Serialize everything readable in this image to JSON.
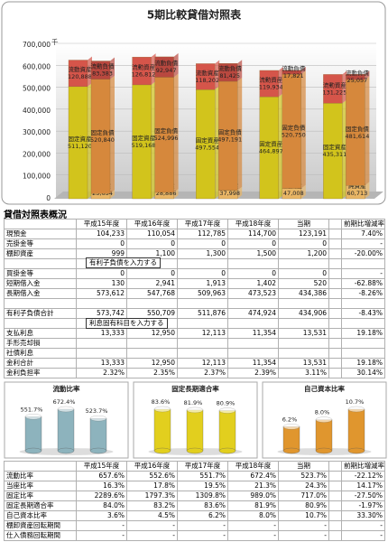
{
  "chart_data": [
    {
      "type": "stacked_pair",
      "title": "5期比較貸借対照表",
      "unit": "千",
      "ylim": [
        0,
        700000
      ],
      "yticks": [
        0,
        {
          "value": 100000,
          "label": "100,000"
        },
        {
          "value": 200000,
          "label": "200,000"
        },
        {
          "value": 300000,
          "label": "300,000"
        },
        {
          "value": 400000,
          "label": "400,000"
        },
        {
          "value": 500000,
          "label": "500,000"
        },
        {
          "value": 600000,
          "label": "600,000"
        },
        {
          "value": 700000,
          "label": "700,000"
        }
      ],
      "grid": true,
      "stacks": [
        [
          {
            "name": "固定資産",
            "color": "#d2c41c",
            "values": [
              511120,
              519168,
              497554,
              464897,
              435311
            ],
            "value_labels": [
              "511,120",
              "519,168",
              "497,554",
              "464,897",
              "435,311"
            ]
          },
          {
            "name": "流動資産",
            "color": "#d5554a",
            "values": [
              120888,
              126812,
              118202,
              119934,
              131225
            ],
            "value_labels": [
              "120,888",
              "126,812",
              "118,202",
              "119,934",
              "131,225"
            ]
          }
        ],
        [
          {
            "name": "純資産",
            "color": "#e8b565",
            "values": [
              23634,
              28886,
              37998,
              47008,
              60713
            ],
            "value_labels": [
              "23,634",
              "28,886",
              "37,998",
              "47,008",
              "60,713"
            ]
          },
          {
            "name": "固定負債",
            "color": "#d6883c",
            "values": [
              520840,
              524996,
              497191,
              520750,
              481614
            ],
            "value_labels": [
              "520,840",
              "524,996",
              "497,191",
              "520,750",
              "481,614"
            ]
          },
          {
            "name": "流動負債",
            "color": "#b9483f",
            "values": [
              83383,
              92947,
              81425,
              17821,
              25057
            ],
            "value_labels": [
              "83,383",
              "92,947",
              "81,425",
              "17,821",
              "25,057"
            ]
          }
        ]
      ]
    },
    {
      "type": "cylinder",
      "title": "流動比率",
      "color": "#8db3bd",
      "values": [
        551.7,
        672.4,
        523.7
      ],
      "value_labels": [
        "551.7%",
        "672.4%",
        "523.7%"
      ]
    },
    {
      "type": "cylinder",
      "title": "固定長期適合率",
      "color": "#e2cf1e",
      "values": [
        83.6,
        81.9,
        80.9
      ],
      "value_labels": [
        "83.6%",
        "81.9%",
        "80.9%"
      ]
    },
    {
      "type": "cylinder",
      "title": "自己資本比率",
      "color": "#e0962e",
      "values": [
        6.2,
        8.0,
        10.7
      ],
      "value_labels": [
        "6.2%",
        "8.0%",
        "10.7%"
      ]
    }
  ],
  "table1": {
    "title": "貸借対照表概況",
    "columns": [
      "平成15年度",
      "平成16年度",
      "平成17年度",
      "平成18年度",
      "当期",
      "前期比増減率"
    ],
    "rows": [
      [
        "現預金",
        "104,233",
        "110,054",
        "112,785",
        "114,700",
        "123,191",
        "7.40%"
      ],
      [
        "売掛金等",
        "0",
        "0",
        "0",
        "0",
        "0",
        "-"
      ],
      [
        "棚卸資産",
        "999",
        "1,100",
        "1,300",
        "1,500",
        "1,200",
        "-20.00%"
      ],
      [
        null,
        null,
        null,
        null,
        null,
        null,
        null
      ],
      [
        "買掛金等",
        "0",
        "0",
        "0",
        "0",
        "0",
        "-"
      ],
      [
        "短期借入金",
        "130",
        "2,941",
        "1,913",
        "1,402",
        "520",
        "-62.88%"
      ],
      [
        "長期借入金",
        "573,612",
        "547,768",
        "509,963",
        "473,523",
        "434,386",
        "-8.26%"
      ],
      [
        null,
        null,
        null,
        null,
        null,
        null,
        null
      ],
      [
        "有利子負債合計",
        "573,742",
        "550,709",
        "511,876",
        "474,924",
        "434,906",
        "-8.43%"
      ],
      [
        null,
        null,
        null,
        null,
        null,
        null,
        null
      ],
      [
        "支払利息",
        "13,333",
        "12,950",
        "12,113",
        "11,354",
        "13,531",
        "19.18%"
      ],
      [
        "手形売却損",
        null,
        null,
        null,
        null,
        null,
        null
      ],
      [
        "社債利息",
        null,
        null,
        null,
        null,
        null,
        null
      ],
      [
        "金利合計",
        "13,333",
        "12,950",
        "12,113",
        "11,354",
        "13,531",
        "19.18%"
      ],
      [
        "金利負担率",
        "2.32%",
        "2.35%",
        "2.37%",
        "2.39%",
        "3.11%",
        "30.14%"
      ]
    ]
  },
  "callouts": [
    "有利子負債を入力する",
    "利息固有科目を入力する"
  ],
  "table2": {
    "columns": [
      "平成15年度",
      "平成16年度",
      "平成17年度",
      "平成18年度",
      "当期",
      "前期比増減率"
    ],
    "rows": [
      [
        "流動比率",
        "657.6%",
        "552.6%",
        "551.7%",
        "672.4%",
        "523.7%",
        "-22.12%"
      ],
      [
        "当座比率",
        "16.3%",
        "17.8%",
        "19.5%",
        "21.3%",
        "24.3%",
        "14.17%"
      ],
      [
        "固定比率",
        "2289.6%",
        "1797.3%",
        "1309.8%",
        "989.0%",
        "717.0%",
        "-27.50%"
      ],
      [
        "固定長期適合率",
        "84.0%",
        "83.2%",
        "83.6%",
        "81.9%",
        "80.9%",
        "-1.97%"
      ],
      [
        "自己資本比率",
        "3.6%",
        "4.5%",
        "6.2%",
        "8.0%",
        "10.7%",
        "33.30%"
      ],
      [
        "棚卸資産回転期間",
        "-",
        "-",
        "-",
        "-",
        "-",
        "-"
      ],
      [
        "仕入債務回転期間",
        "-",
        "-",
        "-",
        "-",
        "-",
        "-"
      ]
    ]
  }
}
